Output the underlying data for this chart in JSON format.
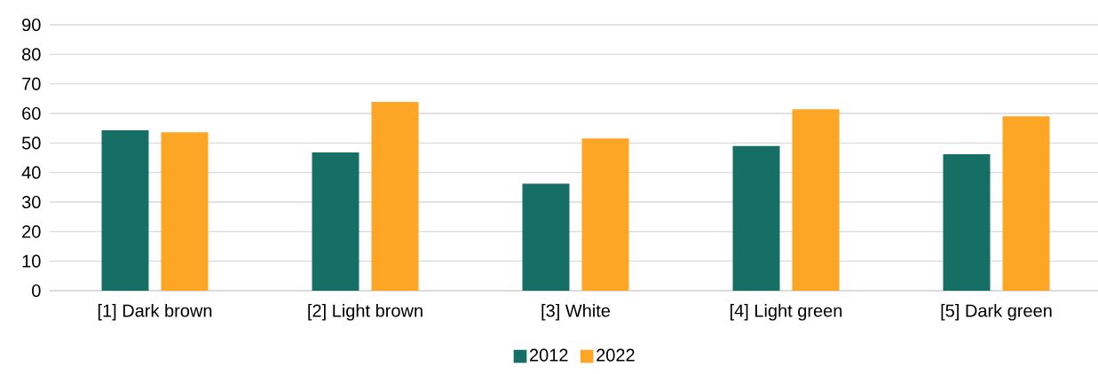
{
  "chart_data": {
    "type": "bar",
    "categories": [
      "[1] Dark brown",
      "[2] Light brown",
      "[3] White",
      "[4] Light green",
      "[5] Dark green"
    ],
    "series": [
      {
        "name": "2012",
        "color": "#166f64",
        "values": [
          54.3,
          46.8,
          36.2,
          49.0,
          46.2
        ]
      },
      {
        "name": "2022",
        "color": "#fda525",
        "values": [
          53.6,
          63.9,
          51.5,
          61.4,
          59.0
        ]
      }
    ],
    "ylim": [
      0,
      90
    ],
    "yticks": [
      0,
      10,
      20,
      30,
      40,
      50,
      60,
      70,
      80,
      90
    ],
    "grid": "y",
    "legend": "bottom"
  }
}
